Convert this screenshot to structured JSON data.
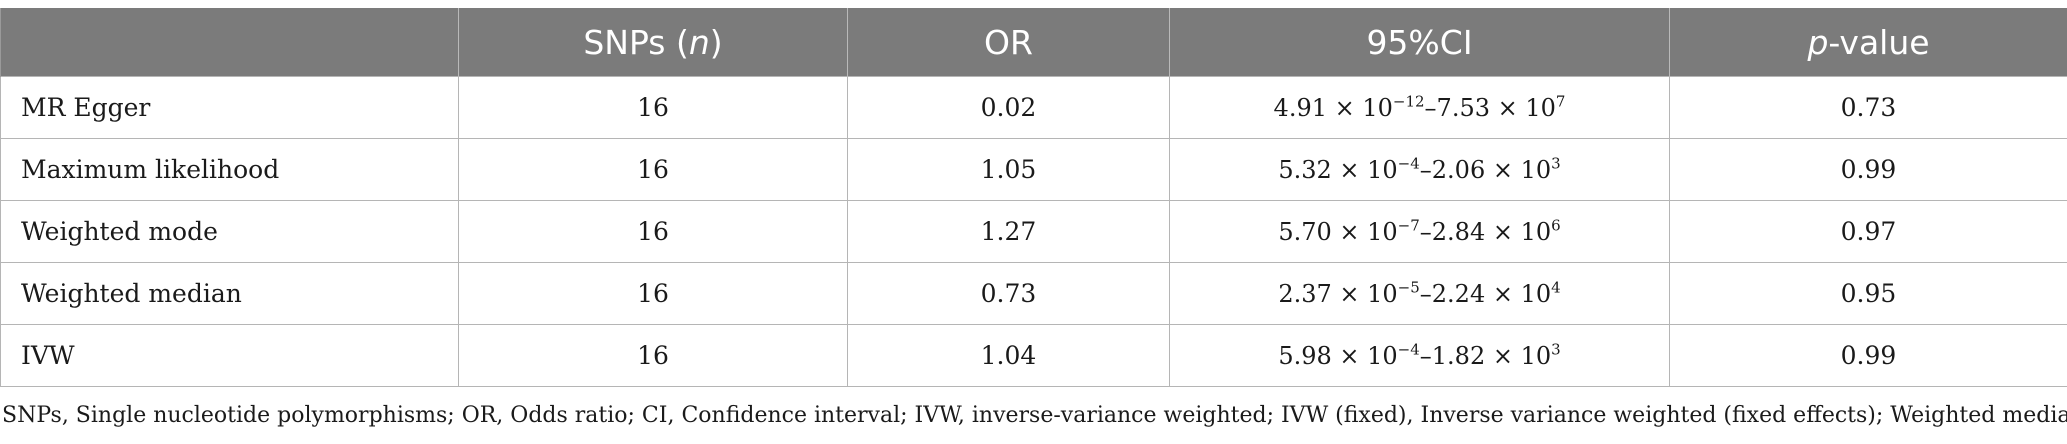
{
  "header": {
    "col1_prefix": "SNPs (",
    "col1_italic": "n",
    "col1_suffix": ")",
    "col2": "OR",
    "col3": "95%CI",
    "col4_italic": "p",
    "col4_suffix": "-value"
  },
  "rows": [
    {
      "method": "MR Egger",
      "snps": "16",
      "or": "0.02",
      "ci": {
        "lo_mant": "4.91",
        "lo_exp": "−12",
        "hi_mant": "7.53",
        "hi_exp": "7"
      },
      "p": "0.73"
    },
    {
      "method": "Maximum likelihood",
      "snps": "16",
      "or": "1.05",
      "ci": {
        "lo_mant": "5.32",
        "lo_exp": "−4",
        "hi_mant": "2.06",
        "hi_exp": "3"
      },
      "p": "0.99"
    },
    {
      "method": "Weighted mode",
      "snps": "16",
      "or": "1.27",
      "ci": {
        "lo_mant": "5.70",
        "lo_exp": "−7",
        "hi_mant": "2.84",
        "hi_exp": "6"
      },
      "p": "0.97"
    },
    {
      "method": "Weighted median",
      "snps": "16",
      "or": "0.73",
      "ci": {
        "lo_mant": "2.37",
        "lo_exp": "−5",
        "hi_mant": "2.24",
        "hi_exp": "4"
      },
      "p": "0.95"
    },
    {
      "method": "IVW",
      "snps": "16",
      "or": "1.04",
      "ci": {
        "lo_mant": "5.98",
        "lo_exp": "−4",
        "hi_mant": "1.82",
        "hi_exp": "3"
      },
      "p": "0.99"
    }
  ],
  "ci_times": " × 10",
  "ci_dash": "–",
  "footnote": "SNPs, Single nucleotide polymorphisms; OR, Odds ratio; CI, Confidence interval; IVW, inverse-variance weighted; IVW (fixed), Inverse variance weighted (fixed effects); Weighted median."
}
